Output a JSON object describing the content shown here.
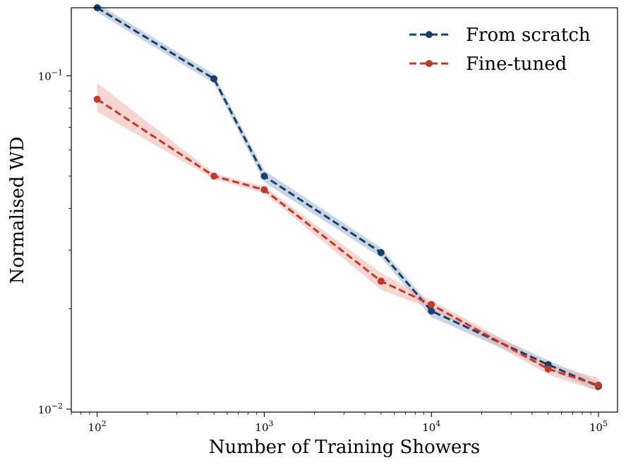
{
  "chart_data": {
    "type": "line",
    "title": "",
    "xlabel": "Number of Training Showers",
    "ylabel": "Normalised WD",
    "xscale": "log",
    "yscale": "log",
    "xlim": [
      70,
      130000
    ],
    "ylim": [
      0.0098,
      0.16
    ],
    "x": [
      100,
      500,
      1000,
      5000,
      10000,
      50000,
      100000
    ],
    "x_ticks": [
      {
        "value": 100,
        "base": "10",
        "exp": "2"
      },
      {
        "value": 1000,
        "base": "10",
        "exp": "3"
      },
      {
        "value": 10000,
        "base": "10",
        "exp": "4"
      },
      {
        "value": 100000,
        "base": "10",
        "exp": "5"
      }
    ],
    "y_ticks": [
      {
        "value": 0.1,
        "base": "10",
        "exp": "−1"
      },
      {
        "value": 0.01,
        "base": "10",
        "exp": "−2"
      }
    ],
    "legend_position": "top-right",
    "series": [
      {
        "name": "From scratch",
        "color": "#173f6b",
        "band_color": "#9db2cc",
        "values": [
          0.16,
          0.098,
          0.05,
          0.0295,
          0.0197,
          0.0136,
          0.0117
        ],
        "lower": [
          0.155,
          0.095,
          0.048,
          0.0285,
          0.0189,
          0.0132,
          0.0113
        ],
        "upper": [
          0.165,
          0.101,
          0.052,
          0.0305,
          0.0203,
          0.014,
          0.0121
        ]
      },
      {
        "name": "Fine-tuned",
        "color": "#c0392b",
        "band_color": "#f0b2ab",
        "values": [
          0.085,
          0.05,
          0.0455,
          0.0242,
          0.0206,
          0.0132,
          0.0118
        ],
        "lower": [
          0.078,
          0.049,
          0.0445,
          0.0228,
          0.02,
          0.0127,
          0.0113
        ],
        "upper": [
          0.095,
          0.051,
          0.0465,
          0.0256,
          0.0212,
          0.0137,
          0.0124
        ]
      }
    ]
  }
}
